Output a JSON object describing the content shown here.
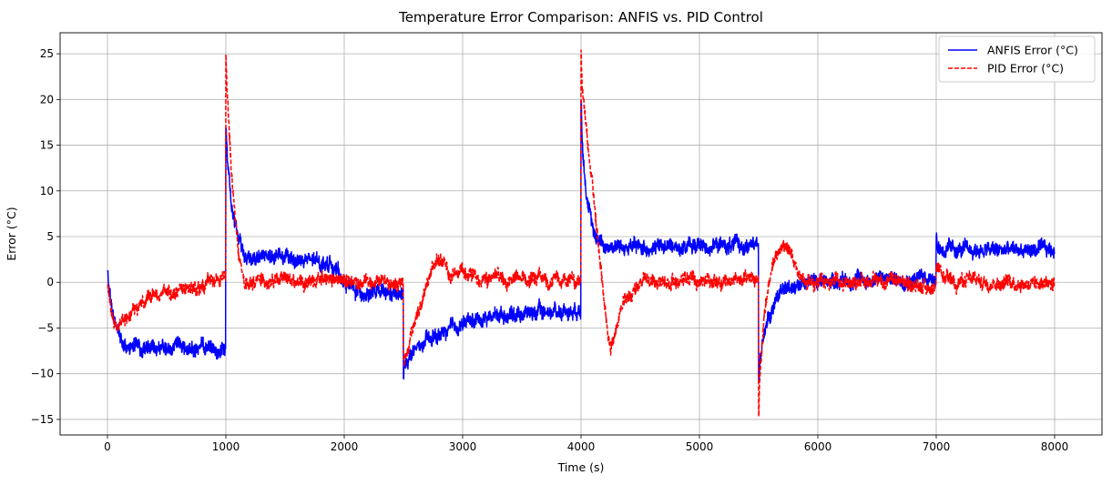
{
  "chart_data": {
    "type": "line",
    "title": "Temperature Error Comparison: ANFIS vs. PID Control",
    "xlabel": "Time (s)",
    "ylabel": "Error (°C)",
    "xlim": [
      -400,
      8400
    ],
    "ylim": [
      -16.7,
      27.3
    ],
    "xticks": [
      0,
      1000,
      2000,
      3000,
      4000,
      5000,
      6000,
      7000,
      8000
    ],
    "yticks": [
      -15,
      -10,
      -5,
      0,
      5,
      10,
      15,
      20,
      25
    ],
    "grid": true,
    "legend_position": "top-right",
    "series": [
      {
        "name": "ANFIS Error (°C)",
        "color": "#0000ff",
        "style": "solid",
        "noise_amplitude": 0.9,
        "x": [
          0,
          10,
          40,
          100,
          150,
          250,
          500,
          998,
          1000,
          1010,
          1050,
          1100,
          1150,
          1200,
          1500,
          1900,
          2000,
          2100,
          2498,
          2500,
          2510,
          2550,
          2700,
          3000,
          3300,
          3998,
          4000,
          4010,
          4050,
          4100,
          4200,
          4500,
          5000,
          5498,
          5500,
          5510,
          5550,
          5650,
          5800,
          6000,
          6500,
          6998,
          7000,
          7010,
          7100,
          8000
        ],
        "y": [
          1.2,
          -0.5,
          -3.5,
          -5.5,
          -6.8,
          -7.2,
          -7.3,
          -7.3,
          17.0,
          14.0,
          9.0,
          5.0,
          3.0,
          2.8,
          2.6,
          2.0,
          0.0,
          -1.0,
          -1.5,
          -10.7,
          -9.0,
          -8.0,
          -6.5,
          -4.5,
          -3.5,
          -3.0,
          21.0,
          16.0,
          9.0,
          5.5,
          4.0,
          3.8,
          4.0,
          4.0,
          -11.0,
          -9.0,
          -5.0,
          -1.5,
          -0.2,
          0.2,
          0.3,
          0.6,
          5.8,
          3.8,
          3.5,
          3.5
        ]
      },
      {
        "name": "PID Error (°C)",
        "color": "#ff0000",
        "style": "dashed",
        "noise_amplitude": 0.8,
        "x": [
          0,
          30,
          80,
          150,
          300,
          600,
          998,
          1000,
          1010,
          1050,
          1100,
          1150,
          1200,
          1300,
          2000,
          2498,
          2500,
          2520,
          2600,
          2700,
          2780,
          2900,
          3200,
          3998,
          4000,
          4010,
          4100,
          4200,
          4250,
          4350,
          4500,
          5000,
          5498,
          5500,
          5510,
          5550,
          5620,
          5700,
          5800,
          5900,
          6500,
          6998,
          7000,
          7100,
          8000
        ],
        "y": [
          -0.3,
          -3.5,
          -5.0,
          -4.0,
          -2.2,
          -0.8,
          0.3,
          25.0,
          21.0,
          12.0,
          4.0,
          0.5,
          0.0,
          0.2,
          0.3,
          0.0,
          -9.0,
          -8.0,
          -4.0,
          -0.5,
          2.6,
          1.0,
          0.3,
          0.2,
          25.5,
          21.0,
          10.0,
          -3.0,
          -7.5,
          -2.5,
          0.0,
          0.3,
          0.3,
          -14.8,
          -10.0,
          -3.0,
          1.5,
          4.5,
          2.0,
          0.0,
          0.2,
          -0.5,
          1.0,
          0.2,
          0.0
        ]
      }
    ]
  }
}
